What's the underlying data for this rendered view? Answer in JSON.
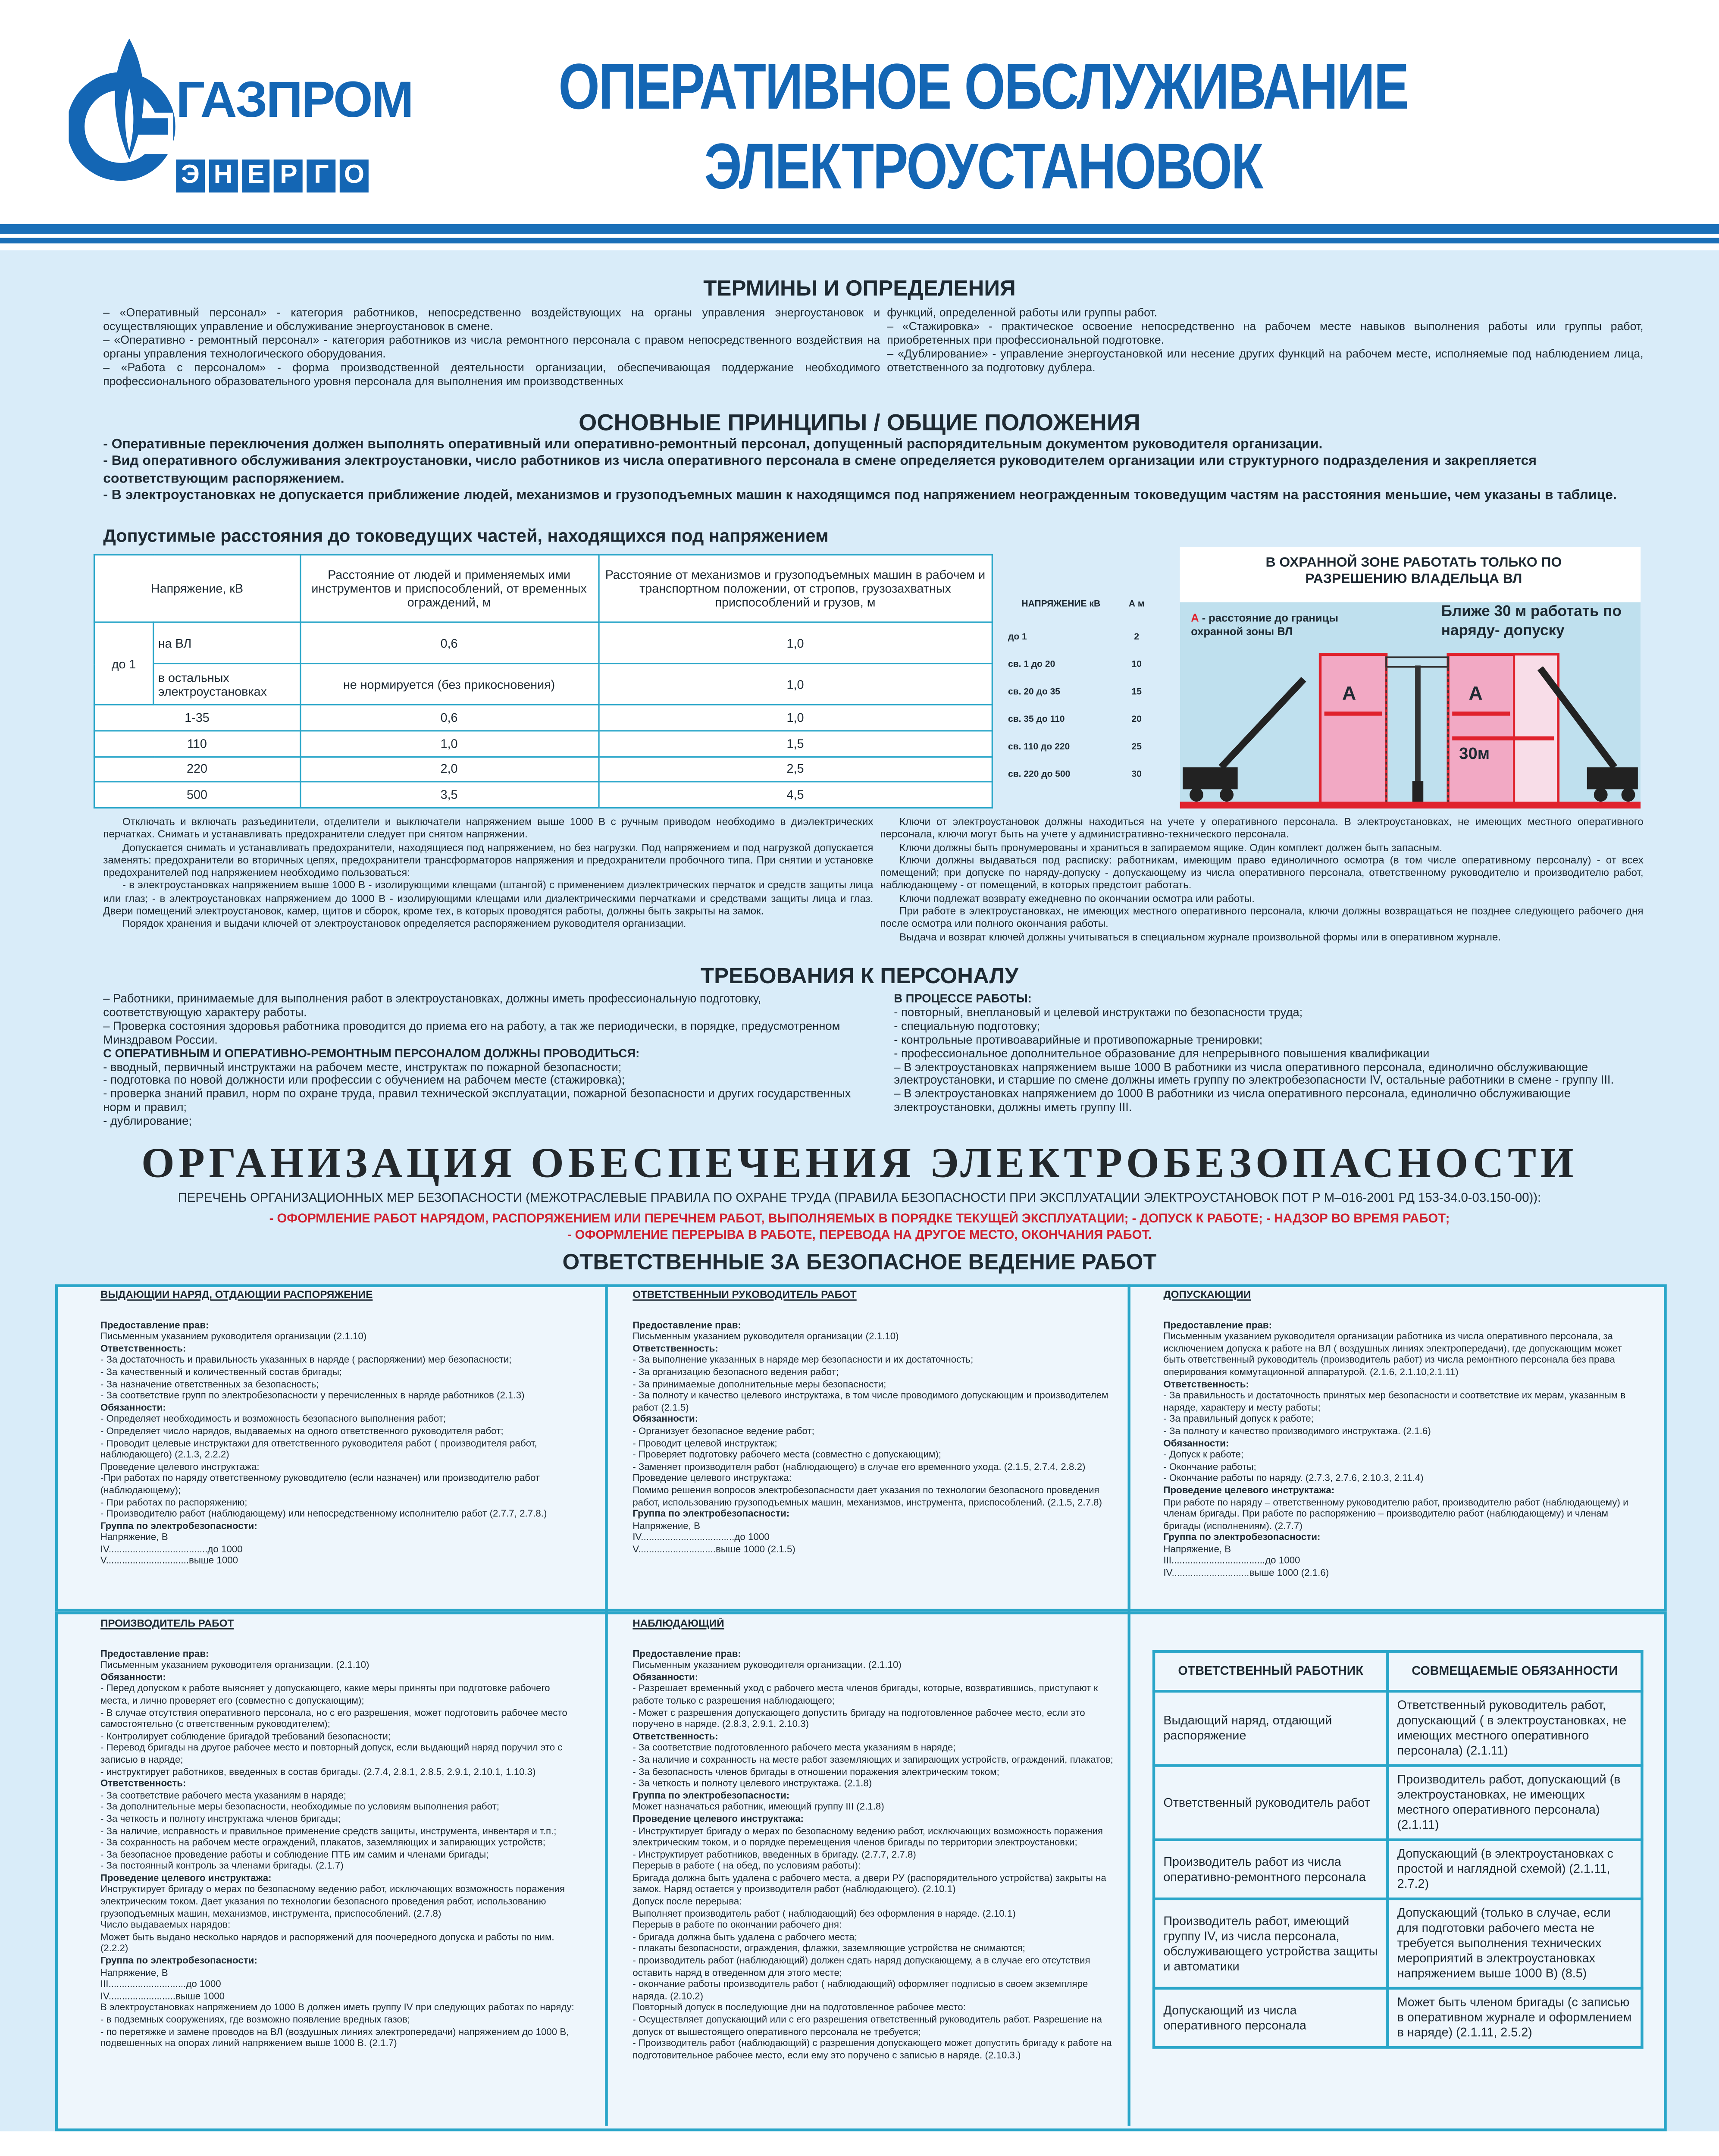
{
  "header": {
    "title_line1": "ОПЕРАТИВНОЕ ОБСЛУЖИВАНИЕ",
    "title_line2": "ЭЛЕКТРОУСТАНОВОК",
    "brand_color": "#1466b4"
  },
  "logo": {
    "name": "ГАЗПРОМ",
    "sub": [
      "Э",
      "Н",
      "Е",
      "Р",
      "Г",
      "О"
    ]
  },
  "terms": {
    "title": "ТЕРМИНЫ И ОПРЕДЕЛЕНИЯ",
    "left": [
      "– «Оперативный персонал» - категория работников, непосредственно воздействующих на органы управления энергоустановок и осуществляющих управление и обслуживание энергоустановок в смене.",
      "– «Оперативно - ремонтный персонал» - категория работников из числа ремонтного персонала с правом непосредственного воздействия на органы управления технологического оборудования.",
      "– «Работа с персоналом» - форма производственной деятельности организации, обеспечивающая поддержание необходимого профессионального образовательного уровня персонала для выполнения им производственных"
    ],
    "right": [
      "функций, определенной работы или группы работ.",
      "– «Стажировка» - практическое освоение непосредственно на рабочем месте навыков выполнения работы или группы работ, приобретенных при профессиональной подготовке.",
      "– «Дублирование» - управление энергоустановкой или несение других функций на рабочем месте, исполняемые под наблюдением лица, ответственного за подготовку дублера."
    ]
  },
  "principles": {
    "title": "ОСНОВНЫЕ ПРИНЦИПЫ  /  ОБЩИЕ ПОЛОЖЕНИЯ",
    "items": [
      "-  Оперативные переключения должен выполнять оперативный или оперативно-ремонтный  персонал, допущенный распорядительным документом руководителя организации.",
      "-  Вид оперативного обслуживания электроустановки, число работников из числа оперативного персонала в смене определяется руководителем организации или структурного подразделения и закрепляется соответствующим распоряжением.",
      "-  В электроустановках не допускается приближение людей, механизмов и грузоподъемных машин к находящимся под напряжением неогражденным токоведущим частям на расстояния меньшие, чем указаны в таблице."
    ],
    "table_title": "Допустимые расстояния до токоведущих частей, находящихся под напряжением"
  },
  "distance_table": {
    "headers": [
      "Напряжение, кВ",
      "Расстояние от людей и применяемых ими инструментов и приспособлений, от временных ограждений, м",
      "Расстояние от механизмов и грузоподъемных машин в рабочем и транспортном положении, от стропов, грузозахватных приспособлений и грузов, м"
    ],
    "group": "до 1",
    "rows": [
      {
        "v": "на ВЛ",
        "p": "0,6",
        "m": "1,0"
      },
      {
        "v": "в остальных электроустановках",
        "p": "не нормируется (без прикосновения)",
        "m": "1,0"
      },
      {
        "v": "1-35",
        "p": "0,6",
        "m": "1,0"
      },
      {
        "v": "110",
        "p": "1,0",
        "m": "1,5"
      },
      {
        "v": "220",
        "p": "2,0",
        "m": "2,5"
      },
      {
        "v": "500",
        "p": "3,5",
        "m": "4,5"
      }
    ]
  },
  "zone_table": {
    "h1": "НАПРЯЖЕНИЕ кВ",
    "h2": "А м",
    "rows": [
      [
        "до 1",
        "2"
      ],
      [
        "св. 1 до 20",
        "10"
      ],
      [
        "св. 20 до 35",
        "15"
      ],
      [
        "св. 35 до 110",
        "20"
      ],
      [
        "св. 110 до 220",
        "25"
      ],
      [
        "св. 220 до 500",
        "30"
      ]
    ]
  },
  "diagram": {
    "title": "В ОХРАННОЙ ЗОНЕ РАБОТАТЬ ТОЛЬКО ПО  РАЗРЕШЕНИЮ  ВЛАДЕЛЬЦА  ВЛ",
    "a_letter": "А",
    "a_legend": " - расстояние до границы охранной зоны ВЛ",
    "near": "Ближе 30 м работать по  наряду-  допуску",
    "dist_label": "30м",
    "zone_color": "#f2a9c4",
    "line_color": "#e0222d"
  },
  "rules_left": [
    "Отключать и включать разъединители, отделители и выключатели напряжением выше 1000 В с ручным приводом необходимо в диэлектрических перчатках. Снимать и устанавливать предохранители следует при снятом напряжении.",
    "Допускается снимать и устанавливать предохранители, находящиеся под напряжением, но без нагрузки. Под напряжением и под нагрузкой допускается заменять: предохранители во вторичных цепях, предохранители трансформаторов напряжения и предохранители пробочного типа. При снятии и установке предохранителей под напряжением необходимо пользоваться:",
    "- в электроустановках напряжением выше 1000 В - изолирующими клещами (штангой) с применением диэлектрических перчаток и средств защиты лица или глаз; - в электроустановках напряжением до 1000 В - изолирующими клещами или диэлектрическими перчатками и средствами защиты лица и глаз. Двери помещений электроустановок, камер, щитов и сборок, кроме тех, в которых проводятся работы, должны быть закрыты на замок.",
    "Порядок хранения и выдачи ключей от электроустановок определяется распоряжением руководителя организации."
  ],
  "rules_right": [
    "Ключи от электроустановок должны находиться на учете у оперативного персонала. В электроустановках, не имеющих местного оперативного персонала, ключи могут быть на учете у административно-технического персонала.",
    "Ключи должны быть пронумерованы и храниться в запираемом ящике. Один комплект должен быть запасным.",
    "Ключи должны выдаваться под расписку: работникам, имеющим право единоличного осмотра (в том числе оперативному персоналу) - от всех помещений; при допуске по наряду-допуску - допускающему из числа оперативного персонала, ответственному руководителю и производителю работ, наблюдающему - от помещений, в которых предстоит работать.",
    "Ключи подлежат возврату ежедневно по окончании осмотра или работы.",
    "При работе в электроустановках, не имеющих местного оперативного персонала, ключи должны возвращаться не позднее следующего рабочего дня после осмотра или полного окончания работы.",
    "Выдача и возврат ключей должны учитываться в специальном журнале произвольной формы или в оперативном журнале."
  ],
  "personnel": {
    "title": "ТРЕБОВАНИЯ К ПЕРСОНАЛУ",
    "left": [
      "– Работники, принимаемые для выполнения работ в электроустановках, должны иметь профессиональную подготовку, соответствующую характеру работы.",
      "– Проверка состояния здоровья работника проводится до приема его на работу, а так же периодически, в порядке, предусмотренном Минздравом России.",
      {
        "h": "   С ОПЕРАТИВНЫМ И ОПЕРАТИВНО-РЕМОНТНЫМ ПЕРСОНАЛОМ ДОЛЖНЫ ПРОВОДИТЬСЯ:"
      },
      "- вводный, первичный инструктажи на рабочем месте, инструктаж по пожарной безопасности;",
      "- подготовка по новой должности или профессии с обучением на рабочем месте (стажировка);",
      "- проверка знаний правил, норм по охране труда, правил технической эксплуатации, пожарной безопасности и других государственных норм и правил;",
      "- дублирование;"
    ],
    "right": [
      {
        "h": "   В ПРОЦЕССЕ РАБОТЫ:"
      },
      "- повторный, внеплановый и целевой инструктажи по безопасности труда;",
      "- специальную подготовку;",
      "- контрольные противоаварийные и противопожарные тренировки;",
      "- профессиональное дополнительное образование для непрерывного повышения квалификации",
      "– В электроустановках напряжением выше 1000 В работники из числа оперативного персонала, единолично обслуживающие электроустановки, и старшие по смене должны иметь группу по электробезопасности IV, остальные работники в смене - группу III.",
      "– В электроустановках напряжением до 1000 В работники из числа оперативного персонала, единолично обслуживающие электроустановки, должны иметь группу III."
    ]
  },
  "organization": {
    "title": "ОРГАНИЗАЦИЯ ОБЕСПЕЧЕНИЯ  ЭЛЕКТРОБЕЗОПАСНОСТИ",
    "list_intro": "ПЕРЕЧЕНЬ ОРГАНИЗАЦИОННЫХ МЕР БЕЗОПАСНОСТИ (МЕЖОТРАСЛЕВЫЕ ПРАВИЛА ПО ОХРАНЕ ТРУДА (ПРАВИЛА БЕЗОПАСНОСТИ ПРИ ЭКСПЛУАТАЦИИ ЭЛЕКТРОУСТАНОВОК ПОТ Р М–016-2001  РД 153-34.0-03.150-00)):",
    "red1": "- ОФОРМЛЕНИЕ РАБОТ НАРЯДОМ, РАСПОРЯЖЕНИЕМ ИЛИ ПЕРЕЧНЕМ РАБОТ, ВЫПОЛНЯЕМЫХ В ПОРЯДКЕ ТЕКУЩЕЙ ЭКСПЛУАТАЦИИ; - ДОПУСК К РАБОТЕ;  - НАДЗОР ВО ВРЕМЯ РАБОТ;",
    "red2": "- ОФОРМЛЕНИЕ ПЕРЕРЫВА В РАБОТЕ, ПЕРЕВОДА НА ДРУГОЕ МЕСТО, ОКОНЧАНИЯ РАБОТ.",
    "red_color": "#d0202e",
    "responsible_title": "ОТВЕТСТВЕННЫЕ ЗА БЕЗОПАСНОЕ ВЕДЕНИЕ РАБОТ"
  },
  "roles": {
    "issuer": {
      "title": "ВЫДАЮЩИЙ НАРЯД, ОТДАЮЩИЙ РАСПОРЯЖЕНИЕ",
      "lines": [
        {
          "h": "Предоставление прав:"
        },
        "Письменным указанием руководителя организации   (2.1.10)",
        {
          "h": "Ответственность:"
        },
        "- За достаточность и правильность указанных в наряде ( распоряжении) мер безопасности;",
        "- За качественный и количественный состав бригады;",
        "- За назначение ответственных за безопасность;",
        "- За соответствие групп по электробезопасности у перечисленных в наряде работников (2.1.3)",
        {
          "h": "Обязанности:"
        },
        "- Определяет необходимость и возможность безопасного выполнения работ;",
        "- Определяет число нарядов, выдаваемых на одного ответственного руководителя работ;",
        "- Проводит целевые инструктажи для ответственного руководителя работ ( производителя работ, наблюдающего)  (2.1.3, 2.2.2)",
        "Проведение целевого инструктажа:",
        "-При работах по наряду ответственному руководителю (если назначен) или производителю работ (наблюдающему);",
        "- При работах по распоряжению;",
        "- Производителю работ (наблюдающему) или непосредственному исполнителю работ (2.7.7, 2.7.8.)",
        {
          "h": "Группа по электробезопасности:"
        },
        "Напряжение, В",
        "IV.....................................до 1000",
        "V...............................выше 1000"
      ]
    },
    "manager": {
      "title": "ОТВЕТСТВЕННЫЙ РУКОВОДИТЕЛЬ РАБОТ",
      "lines": [
        {
          "h": "Предоставление прав:"
        },
        "Письменным указанием руководителя организации   (2.1.10)",
        {
          "h": "Ответственность:"
        },
        "- За выполнение указанных в наряде мер безопасности и их достаточность;",
        "- За организацию безопасного ведения работ;",
        "- За принимаемые дополнительные меры безопасности;",
        "- За полноту и качество целевого инструктажа, в том числе проводимого допускающим и производителем работ   (2.1.5)",
        {
          "h": "Обязанности:"
        },
        "- Организует безопасное ведение работ;",
        "- Проводит целевой инструктаж;",
        "- Проверяет подготовку рабочего места (совместно с допускающим);",
        "- Заменяет производителя работ (наблюдающего) в случае его временного ухода. (2.1.5, 2.7.4, 2.8.2)",
        "Проведение целевого инструктажа:",
        "Помимо решения вопросов электробезопасности дает указания по технологии безопасного проведения работ, использованию грузоподъемных машин, механизмов, инструмента, приспособлений.  (2.1.5, 2.7.8)",
        {
          "h": "Группа по электробезопасности:"
        },
        "Напряжение, В",
        "IV...................................до 1000",
        "V.............................выше 1000   (2.1.5)"
      ]
    },
    "admitter": {
      "title": "ДОПУСКАЮЩИЙ",
      "lines": [
        {
          "h": "Предоставление прав:"
        },
        "Письменным указанием руководителя организации работника из числа оперативного персонала, за исключением допуска к работе на ВЛ ( воздушных линиях электропередачи), где допускающим может быть ответственный руководитель (производитель работ) из числа ремонтного персонала без права оперирования коммутационной аппаратурой. (2.1.6, 2.1.10,2.1.11)",
        {
          "h": "Ответственность:"
        },
        "- За правильность и достаточность принятых мер безопасности и соответствие их мерам, указанным в наряде, характеру и месту работы;",
        "- За правильный допуск к работе;",
        "- За полноту и качество производимого инструктажа.  (2.1.6)",
        {
          "h": "Обязанности:"
        },
        "- Допуск к работе;",
        "- Окончание работы;",
        "- Окончание работы по наряду.  (2.7.3, 2.7.6, 2.10.3, 2.11.4)",
        {
          "h": "Проведение целевого инструктажа:"
        },
        "При работе по наряду – ответственному руководителю работ, производителю работ (наблюдающему) и членам бригады. При работе по распоряжению – производителю работ (наблюдающему) и членам бригады (исполнениям).  (2.7.7)",
        {
          "h": "Группа по электробезопасности:"
        },
        "Напряжение, В",
        "III...................................до 1000",
        "IV.............................выше 1000  (2.1.6)"
      ]
    },
    "foreman": {
      "title": "ПРОИЗВОДИТЕЛЬ РАБОТ",
      "lines": [
        {
          "h": "Предоставление прав:"
        },
        "Письменным указанием руководителя организации.   (2.1.10)",
        {
          "h": "Обязанности:"
        },
        "- Перед допуском к работе выясняет у допускающего, какие меры приняты при подготовке рабочего места, и лично проверяет его (совместно с допускающим);",
        "- В случае отсутствия оперативного персонала, но с его разрешения, может подготовить рабочее место самостоятельно (с ответственным руководителем);",
        "- Контролирует соблюдение бригадой требований безопасности;",
        "- Перевод бригады на другое рабочее место и повторный допуск, если выдающий наряд поручил это с записью в наряде;",
        "- инструктирует работников, введенных в состав бригады.  (2.7.4, 2.8.1, 2.8.5, 2.9.1, 2.10.1, 1.10.3)",
        {
          "h": "Ответственность:"
        },
        "- За соответствие рабочего места указаниям в наряде;",
        "- За дополнительные меры безопасности, необходимые по условиям выполнения работ;",
        "- За четкость и полноту инструктажа членов бригады;",
        "- За наличие, исправность и правильное применение средств защиты, инструмента, инвентаря и т.п.;",
        "- За сохранность на рабочем месте ограждений, плакатов, заземляющих и запирающих устройств;",
        "- За безопасное проведение работы и соблюдение ПТБ им самим и членами бригады;",
        "- За постоянный контроль за членами бригады.   (2.1.7)",
        {
          "h": "Проведение целевого инструктажа:"
        },
        "Инструктирует бригаду о мерах по безопасному ведению работ, исключающих возможность поражения электрическим током. Дает указания по технологии безопасного проведения работ, использованию грузоподъемных машин, механизмов, инструмента, приспособлений.   (2.7.8)",
        "Число выдаваемых нарядов:",
        "Может быть выдано несколько нарядов и распоряжений для поочередного допуска и работы по ним.   (2.2.2)",
        {
          "h": "Группа по электробезопасности:"
        },
        "Напряжение, В",
        "III.............................до 1000",
        "IV.........................выше 1000",
        "В электроустановках напряжением до 1000 В должен иметь группу IV при следующих работах по наряду:",
        "- в подземных сооружениях, где возможно появление вредных газов;",
        "- по перетяжке и замене проводов на ВЛ (воздушных линиях электропередачи) напряжением до 1000 В, подвешенных на опорах линий напряжением выше 1000 В. (2.1.7)"
      ]
    },
    "observer": {
      "title": "НАБЛЮДАЮЩИЙ",
      "lines": [
        {
          "h": "Предоставление прав:"
        },
        "Письменным указанием руководителя организации.   (2.1.10)",
        {
          "h": "Обязанности:"
        },
        "- Разрешает временный уход с рабочего места членов бригады, которые, возвратившись, приступают к работе только с разрешения наблюдающего;",
        "- Может с разрешения допускающего допустить бригаду на подготовленное рабочее место, если это поручено в наряде.   (2.8.3, 2.9.1, 2.10.3)",
        {
          "h": "Ответственность:"
        },
        "- За соответствие подготовленного рабочего места указаниям в наряде;",
        "- За наличие и сохранность на месте работ заземляющих и запирающих устройств, ограждений, плакатов;",
        "- За безопасность членов бригады в отношении поражения электрическим током;",
        "- За четкость и полноту целевого инструктажа.  (2.1.8)",
        {
          "h": "Группа по электробезопасности:"
        },
        "Может назначаться работник, имеющий группу III   (2.1.8)",
        {
          "h": "Проведение целевого инструктажа:"
        },
        "- Инструктирует бригаду о мерах по безопасному ведению работ, исключающих возможность поражения электрическим током, и о порядке перемещения членов бригады по территории электроустановки;",
        "- Инструктирует работников, введенных в бригаду.   (2.7.7, 2.7.8)",
        "Перерыв в работе ( на обед, по условиям работы):",
        "Бригада должна быть удалена с рабочего места, а двери РУ (распорядительного устройства) закрыты на замок. Наряд остается у производителя работ (наблюдающего).   (2.10.1)",
        "Допуск после перерыва:",
        "Выполняет производитель работ ( наблюдающий) без оформления в наряде.   (2.10.1)",
        "Перерыв в работе по окончании рабочего дня:",
        "- бригада должна быть удалена с рабочего места;",
        "- плакаты безопасности, ограждения, флажки, заземляющие устройства не снимаются;",
        "- производитель работ (наблюдающий) должен сдать наряд допускающему, а в случае его отсутствия оставить наряд в отведенном для этого месте;",
        "- окончание работы производитель работ ( наблюдающий) оформляет подписью в своем экземпляре наряда.   (2.10.2)",
        "Повторный допуск в последующие дни на подготовленное рабочее место:",
        "- Осуществляет допускающий или с его разрешения ответственный руководитель работ. Разрешение на допуск от вышестоящего оперативного персонала не требуется;",
        "- Производитель работ (наблюдающий)  с разрешения допускающего может допустить бригаду к работе на подготовительное рабочее место, если ему это поручено с записью в наряде.   (2.10.3.)"
      ]
    }
  },
  "combined_table": {
    "headers": [
      "ОТВЕТСТВЕННЫЙ РАБОТНИК",
      "СОВМЕЩАЕМЫЕ ОБЯЗАННОСТИ"
    ],
    "rows": [
      [
        "Выдающий наряд, отдающий распоряжение",
        "Ответственный руководитель работ, допускающий ( в электроустановках, не имеющих местного оперативного персонала) (2.1.11)"
      ],
      [
        "Ответственный руководитель работ",
        "Производитель работ, допускающий (в электроустановках, не имеющих местного оперативного персонала) (2.1.11)"
      ],
      [
        "Производитель работ из числа оперативно-ремонтного персонала",
        "Допускающий (в электроустановках с простой и наглядной схемой) (2.1.11, 2.7.2)"
      ],
      [
        "Производитель работ, имеющий группу IV, из числа персонала, обслуживающего устройства защиты и автоматики",
        "Допускающий (только в случае, если для подготовки рабочего места не требуется выполнения технических мероприятий в электроустановках напряжением выше 1000 В) (8.5)"
      ],
      [
        "Допускающий из числа оперативного персонала",
        "Может быть членом бригады (с записью в оперативном журнале и оформлением в наряде) (2.1.11, 2.5.2)"
      ]
    ]
  }
}
